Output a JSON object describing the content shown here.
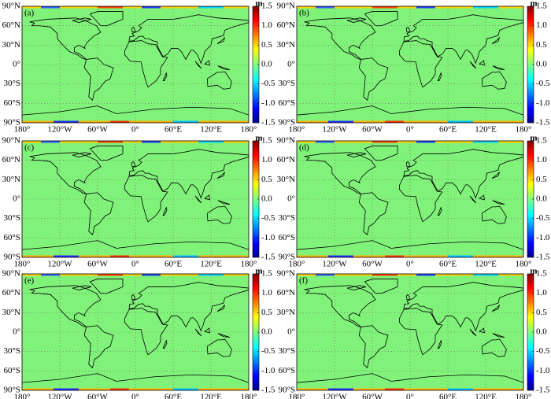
{
  "panels": [
    {
      "label": "(a)"
    },
    {
      "label": "(b)"
    },
    {
      "label": "(c)"
    },
    {
      "label": "(d)"
    },
    {
      "label": "(e)"
    },
    {
      "label": "(f)"
    }
  ],
  "xticks": [
    {
      "value": -180,
      "label": "180°"
    },
    {
      "value": -120,
      "label": "120°W"
    },
    {
      "value": -60,
      "label": "60°W"
    },
    {
      "value": 0,
      "label": "0°"
    },
    {
      "value": 60,
      "label": "60°E"
    },
    {
      "value": 120,
      "label": "120°E"
    },
    {
      "value": 180,
      "label": "180°"
    }
  ],
  "yticks": [
    {
      "value": 90,
      "label": "90°N"
    },
    {
      "value": 60,
      "label": "60°N"
    },
    {
      "value": 30,
      "label": "30°N"
    },
    {
      "value": 0,
      "label": "0°"
    },
    {
      "value": -30,
      "label": "30°S"
    },
    {
      "value": -60,
      "label": "60°S"
    },
    {
      "value": -90,
      "label": "90°S"
    }
  ],
  "colorbar": {
    "unit": "m",
    "clim": [
      -1.5,
      1.5
    ],
    "ticks": [
      1.5,
      {
        "value": 1,
        "label": "1.0"
      },
      0.5,
      {
        "value": 0,
        "label": "0.0"
      },
      -0.5,
      {
        "value": -1,
        "label": "-1.0"
      },
      -1.5
    ]
  }
}
